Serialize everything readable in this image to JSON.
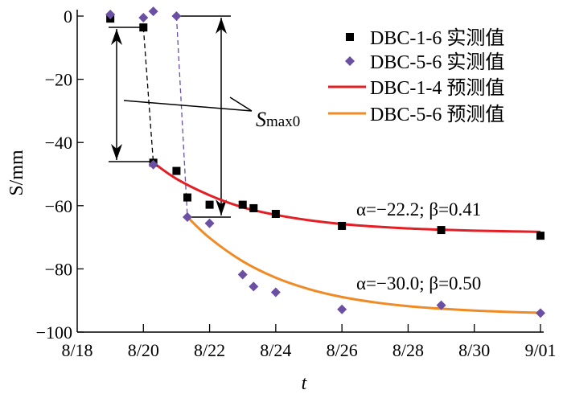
{
  "chart_data": {
    "type": "scatter",
    "title": "",
    "xlabel": "t",
    "ylabel": "S/mm",
    "x_unit": "days after 8/18",
    "xlim": [
      0,
      14
    ],
    "ylim": [
      -100,
      0
    ],
    "x_ticks": [
      {
        "v": 0,
        "label": "8/18"
      },
      {
        "v": 2,
        "label": "8/20"
      },
      {
        "v": 4,
        "label": "8/22"
      },
      {
        "v": 6,
        "label": "8/24"
      },
      {
        "v": 8,
        "label": "8/26"
      },
      {
        "v": 10,
        "label": "8/28"
      },
      {
        "v": 12,
        "label": "8/30"
      },
      {
        "v": 14,
        "label": "9/01"
      }
    ],
    "y_ticks": [
      {
        "v": 0,
        "label": "0"
      },
      {
        "v": -20,
        "label": "−20"
      },
      {
        "v": -40,
        "label": "−40"
      },
      {
        "v": -60,
        "label": "−60"
      },
      {
        "v": -80,
        "label": "−80"
      },
      {
        "v": -100,
        "label": "−100"
      }
    ],
    "grid": false,
    "legend_position": "top-right",
    "series": [
      {
        "name": "DBC-1-6 实测值",
        "kind": "marker-square",
        "color": "#000000",
        "x": [
          1,
          2,
          2.3,
          3,
          3.33,
          4,
          5,
          5.33,
          6,
          8,
          11,
          14
        ],
        "y": [
          -0.8,
          -3.6,
          -46.4,
          -49,
          -57.4,
          -59.7,
          -59.7,
          -60.8,
          -62.6,
          -66.4,
          -67.7,
          -69.5
        ]
      },
      {
        "name": "DBC-5-6 实测值",
        "kind": "marker-diamond",
        "color": "#6a4fa3",
        "x": [
          1,
          2,
          2.3,
          3,
          2.3,
          3.33,
          4,
          5,
          5.33,
          6,
          8,
          11,
          14
        ],
        "y": [
          0.5,
          -0.5,
          1.5,
          0,
          -47,
          -63.6,
          -65.6,
          -81.8,
          -85.6,
          -87.4,
          -92.8,
          -91.5,
          -94
        ]
      },
      {
        "name": "DBC-1-4 预测值",
        "kind": "line",
        "color": "#e31e24",
        "x": [
          2.3,
          3,
          4,
          5,
          6,
          7,
          8,
          9,
          10,
          11,
          12,
          13,
          14
        ],
        "y": [
          -46.4,
          -51.5,
          -56.7,
          -60.5,
          -62.9,
          -64.6,
          -65.8,
          -66.6,
          -67.2,
          -67.6,
          -67.9,
          -68.1,
          -68.3
        ]
      },
      {
        "name": "DBC-5-6 预测值",
        "kind": "line",
        "color": "#f08a24",
        "x": [
          3.33,
          4,
          5,
          6,
          7,
          8,
          9,
          10,
          11,
          12,
          13,
          14
        ],
        "y": [
          -63.6,
          -70.2,
          -77.6,
          -82.8,
          -86.4,
          -88.9,
          -90.6,
          -91.8,
          -92.6,
          -93.2,
          -93.6,
          -93.9
        ]
      }
    ],
    "annotations": {
      "smax_label": "S",
      "smax_sub": "max0",
      "fit1": "α=−22.2; β=0.41",
      "fit2": "α=−30.0; β=0.50"
    },
    "dashed_connectors": [
      {
        "color": "#000000",
        "from": [
          2,
          -3.6
        ],
        "to": [
          2.3,
          -46.4
        ]
      },
      {
        "color": "#6a4fa3",
        "from": [
          3,
          0
        ],
        "to": [
          3.33,
          -63.6
        ]
      }
    ]
  }
}
